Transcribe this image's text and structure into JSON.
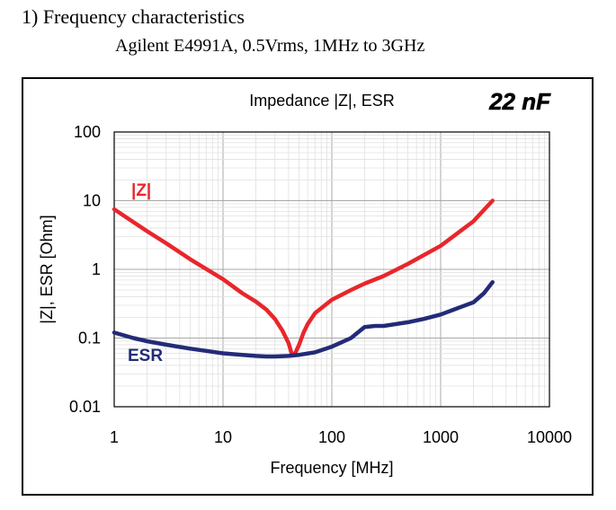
{
  "header": {
    "title": "1) Frequency characteristics",
    "subtitle": "Agilent E4991A, 0.5Vrms, 1MHz to 3GHz"
  },
  "chart_data": {
    "type": "line",
    "title": "Impedance |Z|,  ESR",
    "badge": "22 nF",
    "xlabel": "Frequency [MHz]",
    "ylabel": "|Z|, ESR [Ohm]",
    "xscale": "log",
    "yscale": "log",
    "xlim": [
      1,
      10000
    ],
    "ylim": [
      0.01,
      100
    ],
    "xticks": [
      "1",
      "10",
      "100",
      "1000",
      "10000"
    ],
    "yticks": [
      "100",
      "10",
      "1",
      "0.1",
      "0.01"
    ],
    "grid": true,
    "series": [
      {
        "name": "|Z|",
        "color": "#e8262b",
        "x": [
          1,
          2,
          3,
          5,
          10,
          15,
          20,
          25,
          30,
          35,
          40,
          43,
          46,
          50,
          55,
          60,
          70,
          100,
          150,
          200,
          300,
          500,
          1000,
          2000,
          3000
        ],
        "y": [
          7.5,
          3.6,
          2.4,
          1.4,
          0.72,
          0.45,
          0.34,
          0.26,
          0.19,
          0.13,
          0.085,
          0.058,
          0.06,
          0.08,
          0.12,
          0.16,
          0.23,
          0.36,
          0.5,
          0.62,
          0.8,
          1.2,
          2.2,
          5.0,
          10
        ]
      },
      {
        "name": "ESR",
        "color": "#232b78",
        "x": [
          1,
          1.5,
          2,
          3,
          5,
          7,
          10,
          15,
          20,
          25,
          30,
          40,
          50,
          70,
          100,
          150,
          200,
          250,
          300,
          500,
          700,
          1000,
          1500,
          2000,
          2500,
          3000
        ],
        "y": [
          0.12,
          0.1,
          0.09,
          0.08,
          0.07,
          0.065,
          0.06,
          0.057,
          0.055,
          0.054,
          0.054,
          0.055,
          0.057,
          0.062,
          0.075,
          0.1,
          0.145,
          0.15,
          0.15,
          0.17,
          0.19,
          0.22,
          0.28,
          0.33,
          0.45,
          0.65
        ]
      }
    ]
  }
}
